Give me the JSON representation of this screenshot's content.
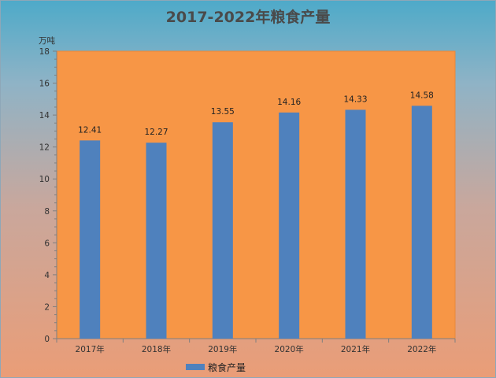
{
  "chart_data": {
    "type": "bar",
    "title": "2017-2022年粮食产量",
    "ylabel": "万吨",
    "xlabel": "",
    "categories": [
      "2017年",
      "2018年",
      "2019年",
      "2020年",
      "2021年",
      "2022年"
    ],
    "series": [
      {
        "name": "粮食产量",
        "values": [
          12.41,
          12.27,
          13.55,
          14.16,
          14.33,
          14.58
        ]
      }
    ],
    "ylim": [
      0,
      18
    ],
    "yticks": [
      0,
      2,
      4,
      6,
      8,
      10,
      12,
      14,
      16,
      18
    ],
    "grid": false,
    "legend_position": "bottom",
    "data_labels": true,
    "colors": {
      "bar": "#4f81bd",
      "plot_background": "#f79646",
      "background_top": "#4eaac9",
      "background_bottom": "#ea9d77"
    }
  }
}
